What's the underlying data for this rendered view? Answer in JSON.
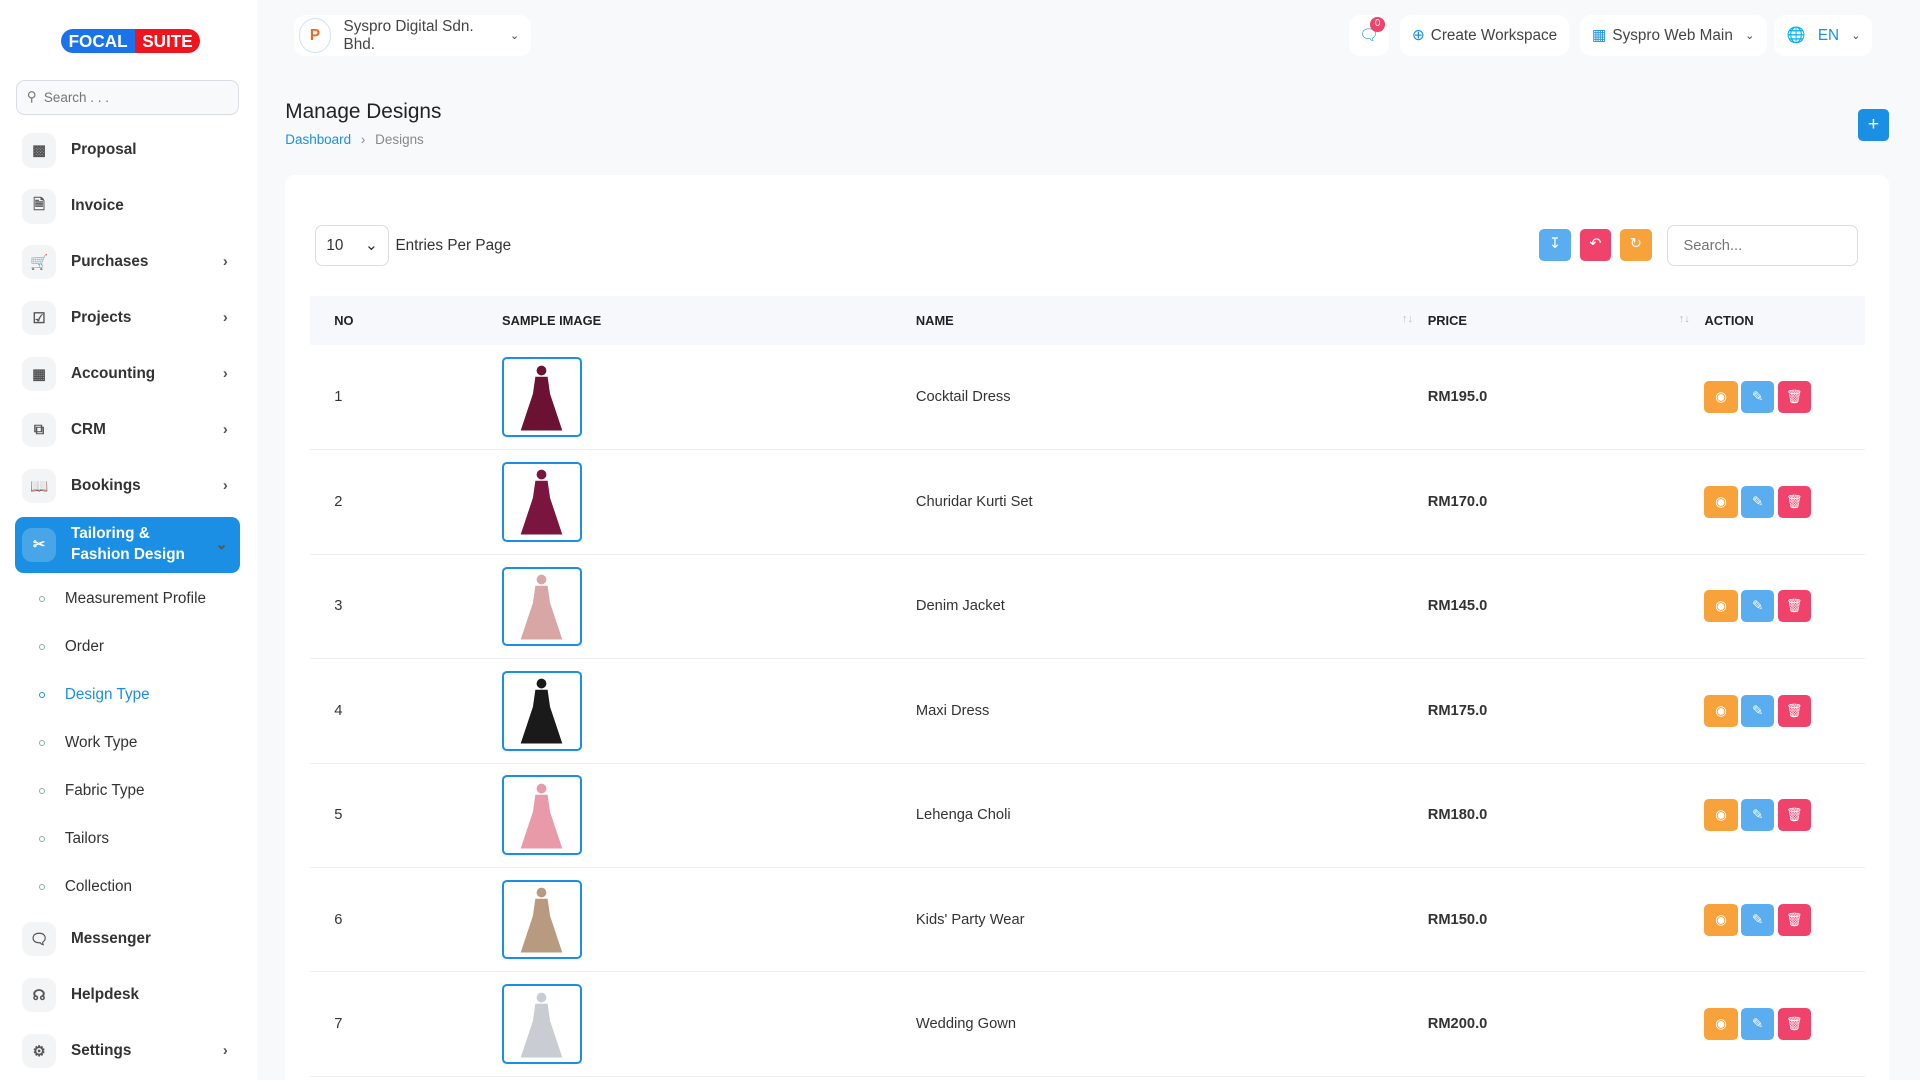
{
  "brand": {
    "logo_left": "FOCAL",
    "logo_right": "SUITE"
  },
  "sidebar": {
    "search_placeholder": "Search . . .",
    "items": [
      {
        "label": "Proposal",
        "icon": "proposal-icon",
        "chev": false
      },
      {
        "label": "Invoice",
        "icon": "file-icon",
        "chev": false
      },
      {
        "label": "Purchases",
        "icon": "cart-icon",
        "chev": true
      },
      {
        "label": "Projects",
        "icon": "check-square-icon",
        "chev": true
      },
      {
        "label": "Accounting",
        "icon": "grid-icon",
        "chev": true
      },
      {
        "label": "CRM",
        "icon": "layers-icon",
        "chev": true
      },
      {
        "label": "Bookings",
        "icon": "book-icon",
        "chev": true
      }
    ],
    "active": {
      "label": "Tailoring & Fashion Design",
      "icon": "scissors-icon"
    },
    "sub": [
      "Measurement Profile",
      "Order",
      "Design Type",
      "Work Type",
      "Fabric Type",
      "Tailors",
      "Collection"
    ],
    "active_sub": "Design Type",
    "bottom": [
      {
        "label": "Messenger",
        "icon": "message-icon",
        "chev": false
      },
      {
        "label": "Helpdesk",
        "icon": "headset-icon",
        "chev": false
      },
      {
        "label": "Settings",
        "icon": "gear-icon",
        "chev": true
      }
    ]
  },
  "topbar": {
    "company": "Syspro Digital Sdn. Bhd.",
    "notif_count": "0",
    "create_workspace": "Create Workspace",
    "workspace": "Syspro Web Main",
    "lang": "EN"
  },
  "page": {
    "title": "Manage Designs",
    "breadcrumb": [
      "Dashboard",
      "Designs"
    ]
  },
  "table": {
    "entries": "10",
    "entries_label": "Entries Per Page",
    "search_placeholder": "Search...",
    "headers": [
      "NO",
      "SAMPLE IMAGE",
      "NAME",
      "PRICE",
      "ACTION"
    ],
    "rows": [
      {
        "no": "1",
        "name": "Cocktail Dress",
        "price": "RM195.0",
        "color": "#6b1233"
      },
      {
        "no": "2",
        "name": "Churidar Kurti Set",
        "price": "RM170.0",
        "color": "#7a1540"
      },
      {
        "no": "3",
        "name": "Denim Jacket",
        "price": "RM145.0",
        "color": "#d9a6a6"
      },
      {
        "no": "4",
        "name": "Maxi Dress",
        "price": "RM175.0",
        "color": "#1a1a1a"
      },
      {
        "no": "5",
        "name": "Lehenga Choli",
        "price": "RM180.0",
        "color": "#e89aa8"
      },
      {
        "no": "6",
        "name": "Kids' Party Wear",
        "price": "RM150.0",
        "color": "#b89a80"
      },
      {
        "no": "7",
        "name": "Wedding Gown",
        "price": "RM200.0",
        "color": "#c9ccd2"
      }
    ]
  },
  "colors": {
    "accent": "#1a8fe3",
    "view": "#f7a23b",
    "edit": "#5aaef0",
    "delete": "#f0436b"
  }
}
